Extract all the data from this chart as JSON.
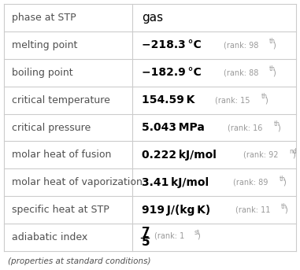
{
  "rows": [
    {
      "label": "phase at STP",
      "value": "gas",
      "rank": "",
      "superscript": ""
    },
    {
      "label": "melting point",
      "value": "−218.3 °C",
      "rank": "(rank: 98",
      "superscript": "th",
      "sup_close": ")"
    },
    {
      "label": "boiling point",
      "value": "−182.9 °C",
      "rank": "(rank: 88",
      "superscript": "th",
      "sup_close": ")"
    },
    {
      "label": "critical temperature",
      "value": "154.59 K",
      "rank": "(rank: 15",
      "superscript": "th",
      "sup_close": ")"
    },
    {
      "label": "critical pressure",
      "value": "5.043 MPa",
      "rank": "(rank: 16",
      "superscript": "th",
      "sup_close": ")"
    },
    {
      "label": "molar heat of fusion",
      "value": "0.222 kJ/mol",
      "rank": "(rank: 92",
      "superscript": "nd",
      "sup_close": ")"
    },
    {
      "label": "molar heat of vaporization",
      "value": "3.41 kJ/mol",
      "rank": "(rank: 89",
      "superscript": "th",
      "sup_close": ")"
    },
    {
      "label": "specific heat at STP",
      "value": "919 J/(kg K)",
      "rank": "(rank: 11",
      "superscript": "th",
      "sup_close": ")"
    },
    {
      "label": "adiabatic index",
      "value_top": "7",
      "value_bot": "5",
      "rank": "(rank: 1",
      "superscript": "st",
      "sup_close": ")"
    }
  ],
  "footer": "(properties at standard conditions)",
  "col_split": 0.44,
  "bg_color": "#ffffff",
  "label_color": "#505050",
  "value_color": "#000000",
  "rank_color": "#999999",
  "line_color": "#cccccc",
  "label_fontsize": 9,
  "value_fontsize": 10,
  "rank_fontsize": 7,
  "footer_fontsize": 7.5
}
